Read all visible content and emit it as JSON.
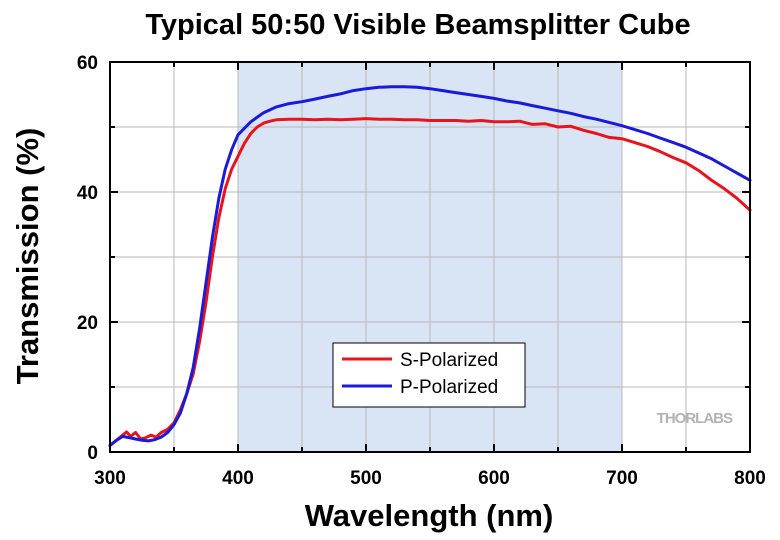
{
  "chart_data": {
    "type": "line",
    "title": "Typical 50:50 Visible Beamsplitter Cube",
    "xlabel": "Wavelength (nm)",
    "ylabel": "Transmission (%)",
    "xlim": [
      300,
      800
    ],
    "ylim": [
      0,
      60
    ],
    "x_ticks": [
      300,
      400,
      500,
      600,
      700,
      800
    ],
    "y_ticks": [
      0,
      20,
      40,
      60
    ],
    "grid": true,
    "shaded_region": {
      "x_range": [
        400,
        700
      ],
      "color": "#d9e4f5"
    },
    "legend": {
      "placement": "lower-center",
      "entries": [
        "S-Polarized",
        "P-Polarized"
      ]
    },
    "series": [
      {
        "name": "S-Polarized",
        "color": "#e8141c",
        "points": [
          [
            300,
            1.0
          ],
          [
            305,
            1.8
          ],
          [
            310,
            2.6
          ],
          [
            313,
            3.1
          ],
          [
            316,
            2.4
          ],
          [
            320,
            3.0
          ],
          [
            324,
            2.0
          ],
          [
            328,
            2.2
          ],
          [
            332,
            2.6
          ],
          [
            336,
            2.3
          ],
          [
            340,
            3.0
          ],
          [
            345,
            3.5
          ],
          [
            350,
            4.5
          ],
          [
            355,
            6.5
          ],
          [
            360,
            9.0
          ],
          [
            365,
            12.0
          ],
          [
            370,
            17.0
          ],
          [
            375,
            23.0
          ],
          [
            380,
            30.0
          ],
          [
            385,
            36.0
          ],
          [
            390,
            40.5
          ],
          [
            395,
            43.5
          ],
          [
            400,
            45.5
          ],
          [
            405,
            47.5
          ],
          [
            410,
            49.0
          ],
          [
            415,
            50.0
          ],
          [
            420,
            50.6
          ],
          [
            425,
            50.9
          ],
          [
            430,
            51.1
          ],
          [
            440,
            51.2
          ],
          [
            450,
            51.2
          ],
          [
            460,
            51.1
          ],
          [
            470,
            51.2
          ],
          [
            480,
            51.1
          ],
          [
            490,
            51.2
          ],
          [
            500,
            51.3
          ],
          [
            510,
            51.2
          ],
          [
            520,
            51.2
          ],
          [
            530,
            51.1
          ],
          [
            540,
            51.1
          ],
          [
            550,
            51.0
          ],
          [
            560,
            51.0
          ],
          [
            570,
            51.0
          ],
          [
            580,
            50.9
          ],
          [
            590,
            51.0
          ],
          [
            600,
            50.8
          ],
          [
            610,
            50.8
          ],
          [
            620,
            50.9
          ],
          [
            630,
            50.4
          ],
          [
            640,
            50.5
          ],
          [
            650,
            50.0
          ],
          [
            660,
            50.1
          ],
          [
            670,
            49.5
          ],
          [
            680,
            49.0
          ],
          [
            690,
            48.4
          ],
          [
            700,
            48.2
          ],
          [
            710,
            47.6
          ],
          [
            720,
            47.0
          ],
          [
            730,
            46.2
          ],
          [
            740,
            45.3
          ],
          [
            750,
            44.5
          ],
          [
            760,
            43.3
          ],
          [
            770,
            41.8
          ],
          [
            780,
            40.5
          ],
          [
            790,
            39.0
          ],
          [
            800,
            37.2
          ]
        ]
      },
      {
        "name": "P-Polarized",
        "color": "#1a1ad8",
        "points": [
          [
            300,
            1.0
          ],
          [
            305,
            1.8
          ],
          [
            310,
            2.4
          ],
          [
            315,
            2.2
          ],
          [
            320,
            2.0
          ],
          [
            325,
            1.8
          ],
          [
            330,
            1.7
          ],
          [
            335,
            1.9
          ],
          [
            340,
            2.3
          ],
          [
            345,
            3.0
          ],
          [
            350,
            4.2
          ],
          [
            355,
            6.0
          ],
          [
            360,
            9.0
          ],
          [
            365,
            13.0
          ],
          [
            370,
            19.0
          ],
          [
            375,
            26.0
          ],
          [
            380,
            33.0
          ],
          [
            385,
            39.0
          ],
          [
            390,
            43.5
          ],
          [
            395,
            46.5
          ],
          [
            400,
            48.8
          ],
          [
            410,
            50.8
          ],
          [
            420,
            52.2
          ],
          [
            430,
            53.1
          ],
          [
            440,
            53.6
          ],
          [
            450,
            53.9
          ],
          [
            460,
            54.3
          ],
          [
            470,
            54.7
          ],
          [
            480,
            55.1
          ],
          [
            490,
            55.6
          ],
          [
            500,
            55.9
          ],
          [
            510,
            56.1
          ],
          [
            520,
            56.2
          ],
          [
            530,
            56.2
          ],
          [
            540,
            56.1
          ],
          [
            550,
            55.9
          ],
          [
            560,
            55.6
          ],
          [
            570,
            55.3
          ],
          [
            580,
            55.0
          ],
          [
            590,
            54.7
          ],
          [
            600,
            54.4
          ],
          [
            610,
            54.0
          ],
          [
            620,
            53.7
          ],
          [
            630,
            53.3
          ],
          [
            640,
            52.9
          ],
          [
            650,
            52.5
          ],
          [
            660,
            52.1
          ],
          [
            670,
            51.6
          ],
          [
            680,
            51.2
          ],
          [
            690,
            50.7
          ],
          [
            700,
            50.2
          ],
          [
            710,
            49.6
          ],
          [
            720,
            49.0
          ],
          [
            730,
            48.3
          ],
          [
            740,
            47.6
          ],
          [
            750,
            46.9
          ],
          [
            760,
            46.0
          ],
          [
            770,
            45.1
          ],
          [
            780,
            44.0
          ],
          [
            790,
            42.9
          ],
          [
            800,
            41.8
          ]
        ]
      }
    ]
  },
  "watermark": {
    "text": "THORLABS",
    "color": "#b3b3b3"
  }
}
